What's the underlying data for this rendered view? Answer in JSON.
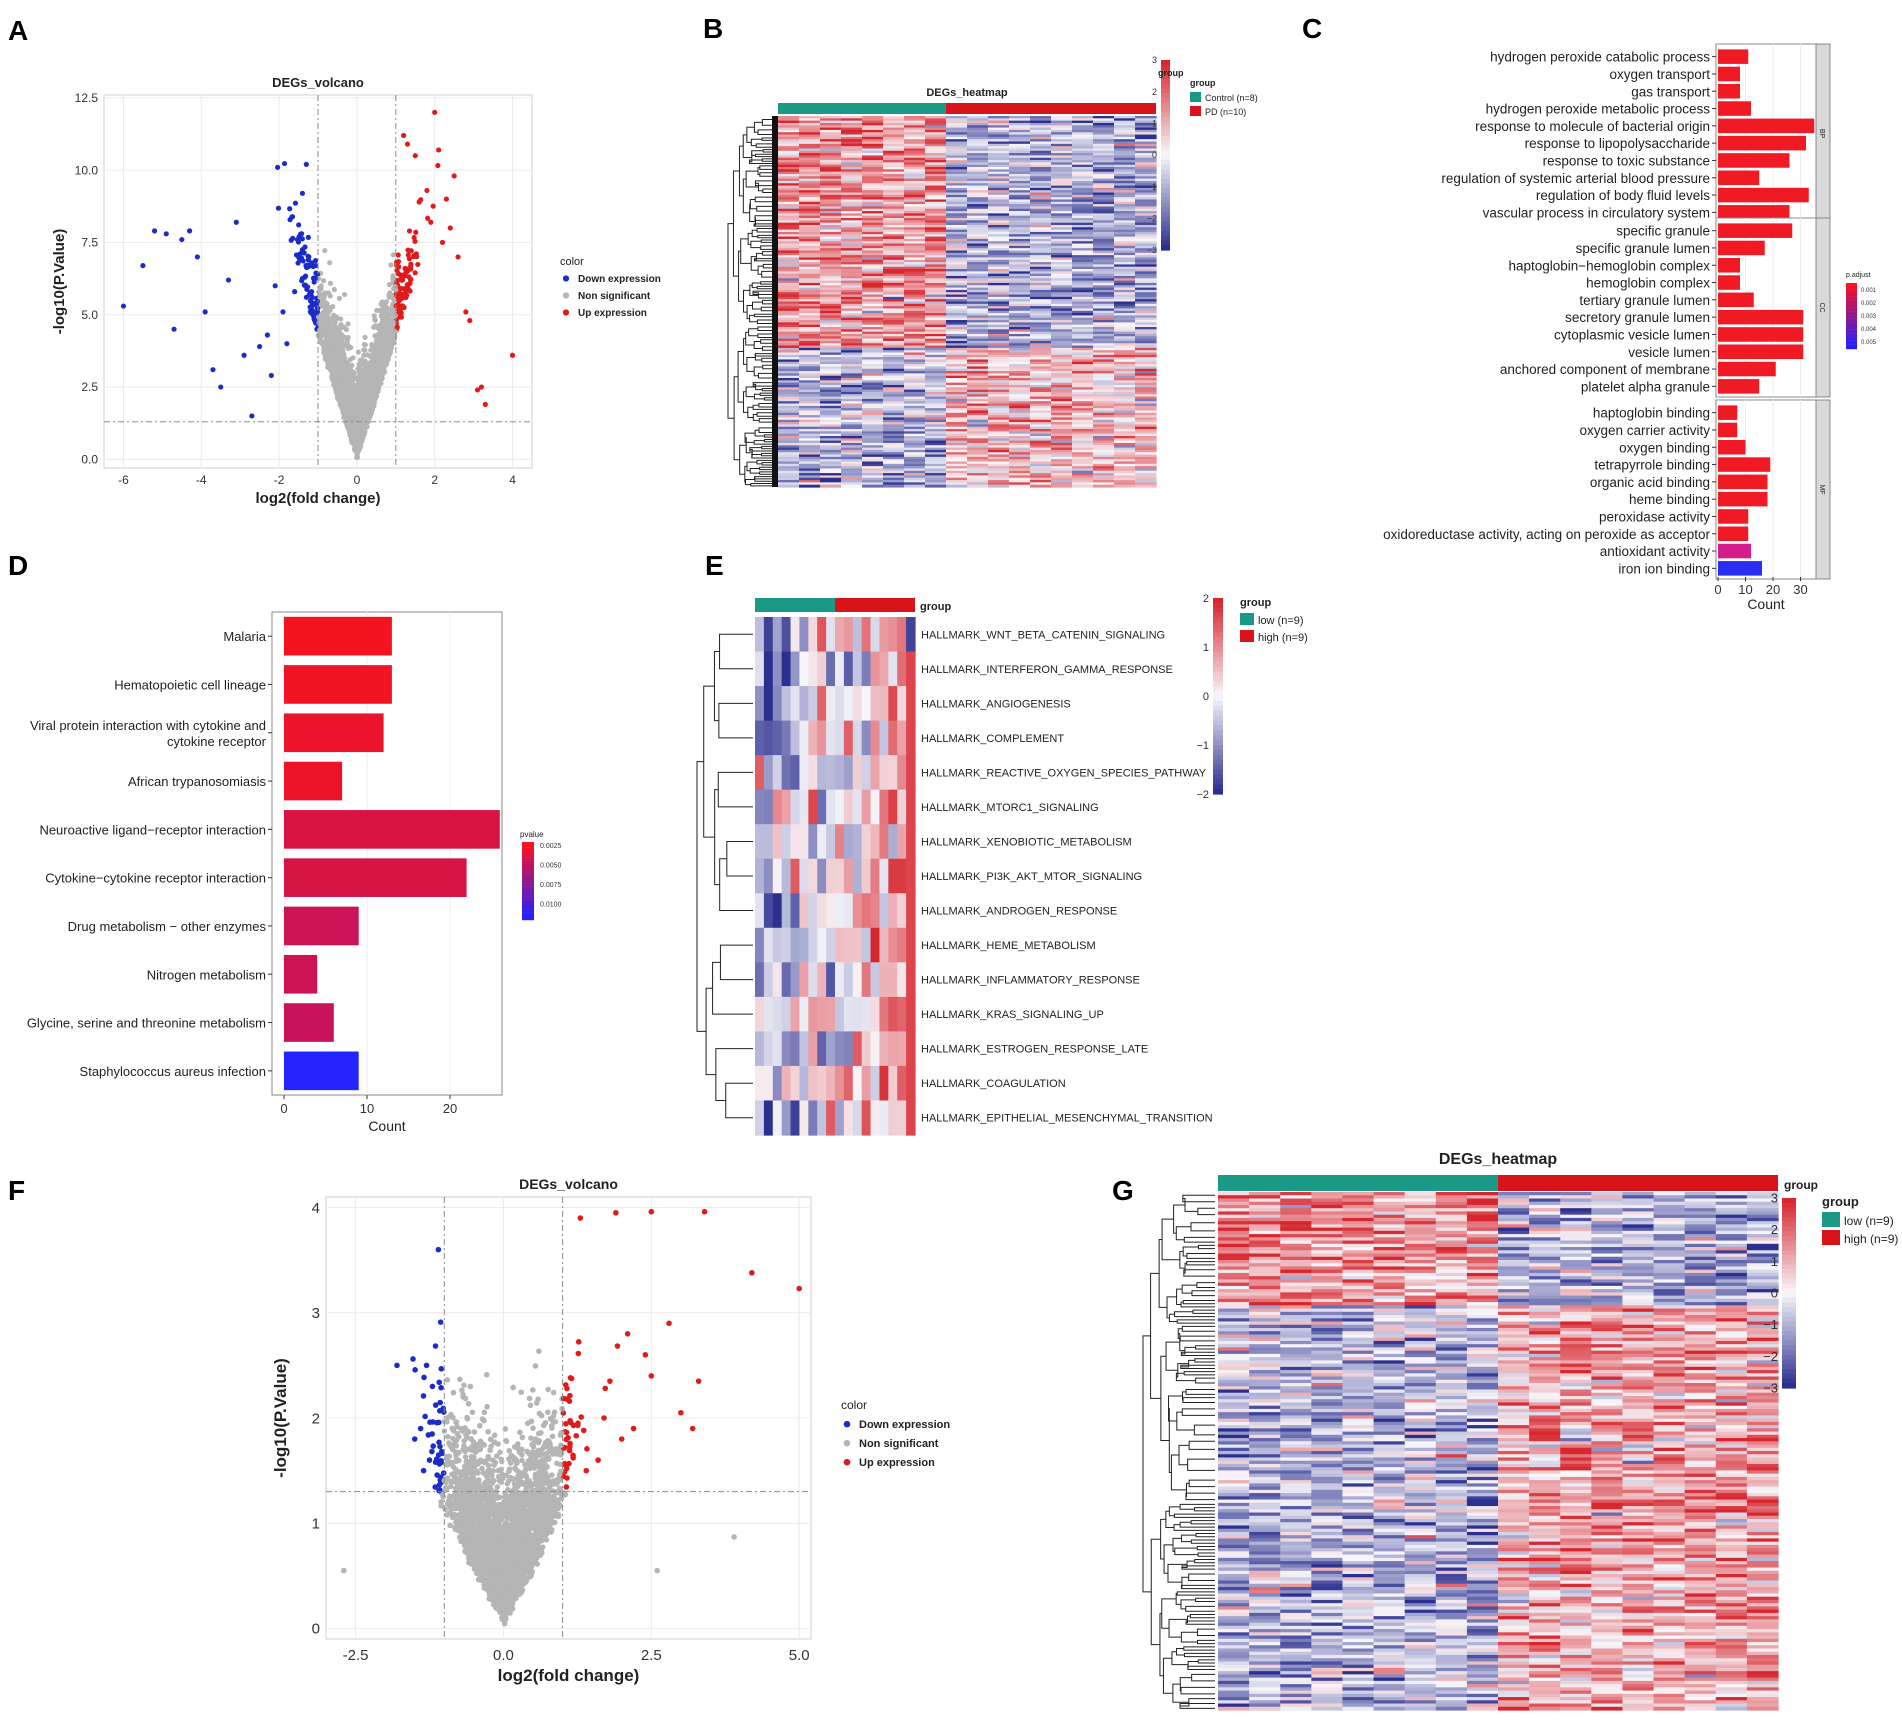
{
  "panels": {
    "A": "A",
    "B": "B",
    "C": "C",
    "D": "D",
    "E": "E",
    "F": "F",
    "G": "G"
  },
  "colors": {
    "down": "#1a2dc8",
    "ns": "#b5b5b5",
    "up": "#e01b1b",
    "teal": "#1a9a86",
    "red": "#d9131a",
    "navy": "#1b2383"
  },
  "chart_data": [
    {
      "id": "A",
      "type": "scatter",
      "title": "DEGs_volcano",
      "xlabel": "log2(fold change)",
      "ylabel": "-log10(P.Value)",
      "xlim": [
        -6.5,
        4.5
      ],
      "ylim": [
        -0.3,
        12.6
      ],
      "xticks": [
        "-6",
        "-4",
        "-2",
        "0",
        "2",
        "4"
      ],
      "xtick_values": [
        -6,
        -4,
        -2,
        0,
        2,
        4
      ],
      "yticks": [
        "0.0",
        "2.5",
        "5.0",
        "7.5",
        "10.0",
        "12.5"
      ],
      "ytick_values": [
        0,
        2.5,
        5,
        7.5,
        10,
        12.5
      ],
      "thresholds": {
        "fc": 1,
        "p": 1.3
      },
      "legend": {
        "title": "color",
        "entries": [
          "Down expression",
          "Non significant",
          "Up expression"
        ]
      }
    },
    {
      "id": "B",
      "type": "heatmap",
      "title": "DEGs_heatmap",
      "legend_title": "group",
      "groups": [
        "Control (n=8)",
        "PD (n=10)"
      ],
      "scale_title": "group",
      "scale_ticks": [
        "3",
        "2",
        "1",
        "0",
        "−1",
        "−2",
        "−3"
      ],
      "n_control": 8,
      "n_case": 10
    },
    {
      "id": "C",
      "type": "bar",
      "xlabel": "Count",
      "xticks": [
        "0",
        "10",
        "20",
        "30"
      ],
      "xtick_values": [
        0,
        10,
        20,
        30
      ],
      "legend_title": "p.adjust",
      "legend_ticks": [
        "0.001",
        "0.002",
        "0.003",
        "0.004",
        "0.005"
      ],
      "sections": [
        {
          "name": "BP",
          "terms": [
            {
              "label": "hydrogen peroxide catabolic process",
              "count": 11
            },
            {
              "label": "oxygen transport",
              "count": 8
            },
            {
              "label": "gas transport",
              "count": 8
            },
            {
              "label": "hydrogen peroxide metabolic process",
              "count": 12
            },
            {
              "label": "response to molecule of bacterial origin",
              "count": 35
            },
            {
              "label": "response to lipopolysaccharide",
              "count": 32
            },
            {
              "label": "response to toxic substance",
              "count": 26
            },
            {
              "label": "regulation of systemic arterial blood pressure",
              "count": 15
            },
            {
              "label": "regulation of body fluid levels",
              "count": 33
            },
            {
              "label": "vascular process in circulatory system",
              "count": 26
            }
          ]
        },
        {
          "name": "CC",
          "terms": [
            {
              "label": "specific granule",
              "count": 27
            },
            {
              "label": "specific granule lumen",
              "count": 17
            },
            {
              "label": "haptoglobin−hemoglobin complex",
              "count": 8
            },
            {
              "label": "hemoglobin complex",
              "count": 8
            },
            {
              "label": "tertiary granule lumen",
              "count": 13
            },
            {
              "label": "secretory granule lumen",
              "count": 31
            },
            {
              "label": "cytoplasmic vesicle lumen",
              "count": 31
            },
            {
              "label": "vesicle lumen",
              "count": 31
            },
            {
              "label": "anchored component of membrane",
              "count": 21
            },
            {
              "label": "platelet alpha granule",
              "count": 15
            }
          ]
        },
        {
          "name": "MF",
          "terms": [
            {
              "label": "haptoglobin binding",
              "count": 7
            },
            {
              "label": "oxygen carrier activity",
              "count": 7
            },
            {
              "label": "oxygen binding",
              "count": 10
            },
            {
              "label": "tetrapyrrole binding",
              "count": 19
            },
            {
              "label": "organic acid binding",
              "count": 18
            },
            {
              "label": "heme binding",
              "count": 18
            },
            {
              "label": "peroxidase activity",
              "count": 11
            },
            {
              "label": "oxidoreductase activity, acting on peroxide as acceptor",
              "count": 11
            },
            {
              "label": "antioxidant activity",
              "count": 12
            },
            {
              "label": "iron ion binding",
              "count": 16
            }
          ]
        }
      ]
    },
    {
      "id": "D",
      "type": "bar",
      "xlabel": "Count",
      "xticks": [
        "0",
        "10",
        "20"
      ],
      "xtick_values": [
        0,
        10,
        20
      ],
      "legend_title": "pvalue",
      "legend_ticks": [
        "0.0025",
        "0.0050",
        "0.0075",
        "0.0100"
      ],
      "terms": [
        {
          "label": "Malaria",
          "count": 13,
          "p": 0.0003
        },
        {
          "label": "Hematopoietic cell lineage",
          "count": 13,
          "p": 0.0006
        },
        {
          "label": "Viral protein interaction with cytokine and",
          "label2": "cytokine receptor",
          "count": 12,
          "p": 0.0009
        },
        {
          "label": "African trypanosomiasis",
          "count": 7,
          "p": 0.0008
        },
        {
          "label": "Neuroactive ligand−receptor interaction",
          "count": 26,
          "p": 0.0022
        },
        {
          "label": "Cytokine−cytokine receptor interaction",
          "count": 22,
          "p": 0.0024
        },
        {
          "label": "Drug metabolism − other enzymes",
          "count": 9,
          "p": 0.0033
        },
        {
          "label": "Nitrogen metabolism",
          "count": 4,
          "p": 0.0032
        },
        {
          "label": "Glycine, serine and threonine metabolism",
          "count": 6,
          "p": 0.0035
        },
        {
          "label": "Staphylococcus aureus infection",
          "count": 9,
          "p": 0.0105
        }
      ]
    },
    {
      "id": "E",
      "type": "heatmap",
      "legend_title": "group",
      "groups": [
        "low (n=9)",
        "high (n=9)"
      ],
      "group_label": "group",
      "scale_ticks": [
        "2",
        "1",
        "0",
        "−1",
        "−2"
      ],
      "rows": [
        "HALLMARK_WNT_BETA_CATENIN_SIGNALING",
        "HALLMARK_INTERFERON_GAMMA_RESPONSE",
        "HALLMARK_ANGIOGENESIS",
        "HALLMARK_COMPLEMENT",
        "HALLMARK_REACTIVE_OXYGEN_SPECIES_PATHWAY",
        "HALLMARK_MTORC1_SIGNALING",
        "HALLMARK_XENOBIOTIC_METABOLISM",
        "HALLMARK_PI3K_AKT_MTOR_SIGNALING",
        "HALLMARK_ANDROGEN_RESPONSE",
        "HALLMARK_HEME_METABOLISM",
        "HALLMARK_INFLAMMATORY_RESPONSE",
        "HALLMARK_KRAS_SIGNALING_UP",
        "HALLMARK_ESTROGEN_RESPONSE_LATE",
        "HALLMARK_COAGULATION",
        "HALLMARK_EPITHELIAL_MESENCHYMAL_TRANSITION"
      ]
    },
    {
      "id": "F",
      "type": "scatter",
      "title": "DEGs_volcano",
      "xlabel": "log2(fold change)",
      "ylabel": "-log10(P.Value)",
      "xlim": [
        -3.0,
        5.2
      ],
      "ylim": [
        -0.1,
        4.1
      ],
      "xticks": [
        "-2.5",
        "0.0",
        "2.5",
        "5.0"
      ],
      "xtick_values": [
        -2.5,
        0,
        2.5,
        5
      ],
      "yticks": [
        "0",
        "1",
        "2",
        "3",
        "4"
      ],
      "ytick_values": [
        0,
        1,
        2,
        3,
        4
      ],
      "thresholds": {
        "fc": 1,
        "p": 1.3
      },
      "legend": {
        "title": "color",
        "entries": [
          "Down expression",
          "Non significant",
          "Up expression"
        ]
      }
    },
    {
      "id": "G",
      "type": "heatmap",
      "title": "DEGs_heatmap",
      "legend_title": "group",
      "groups": [
        "low (n=9)",
        "high (n=9)"
      ],
      "group_label": "group",
      "scale_ticks": [
        "3",
        "2",
        "1",
        "0",
        "−1",
        "−2",
        "−3"
      ]
    }
  ]
}
